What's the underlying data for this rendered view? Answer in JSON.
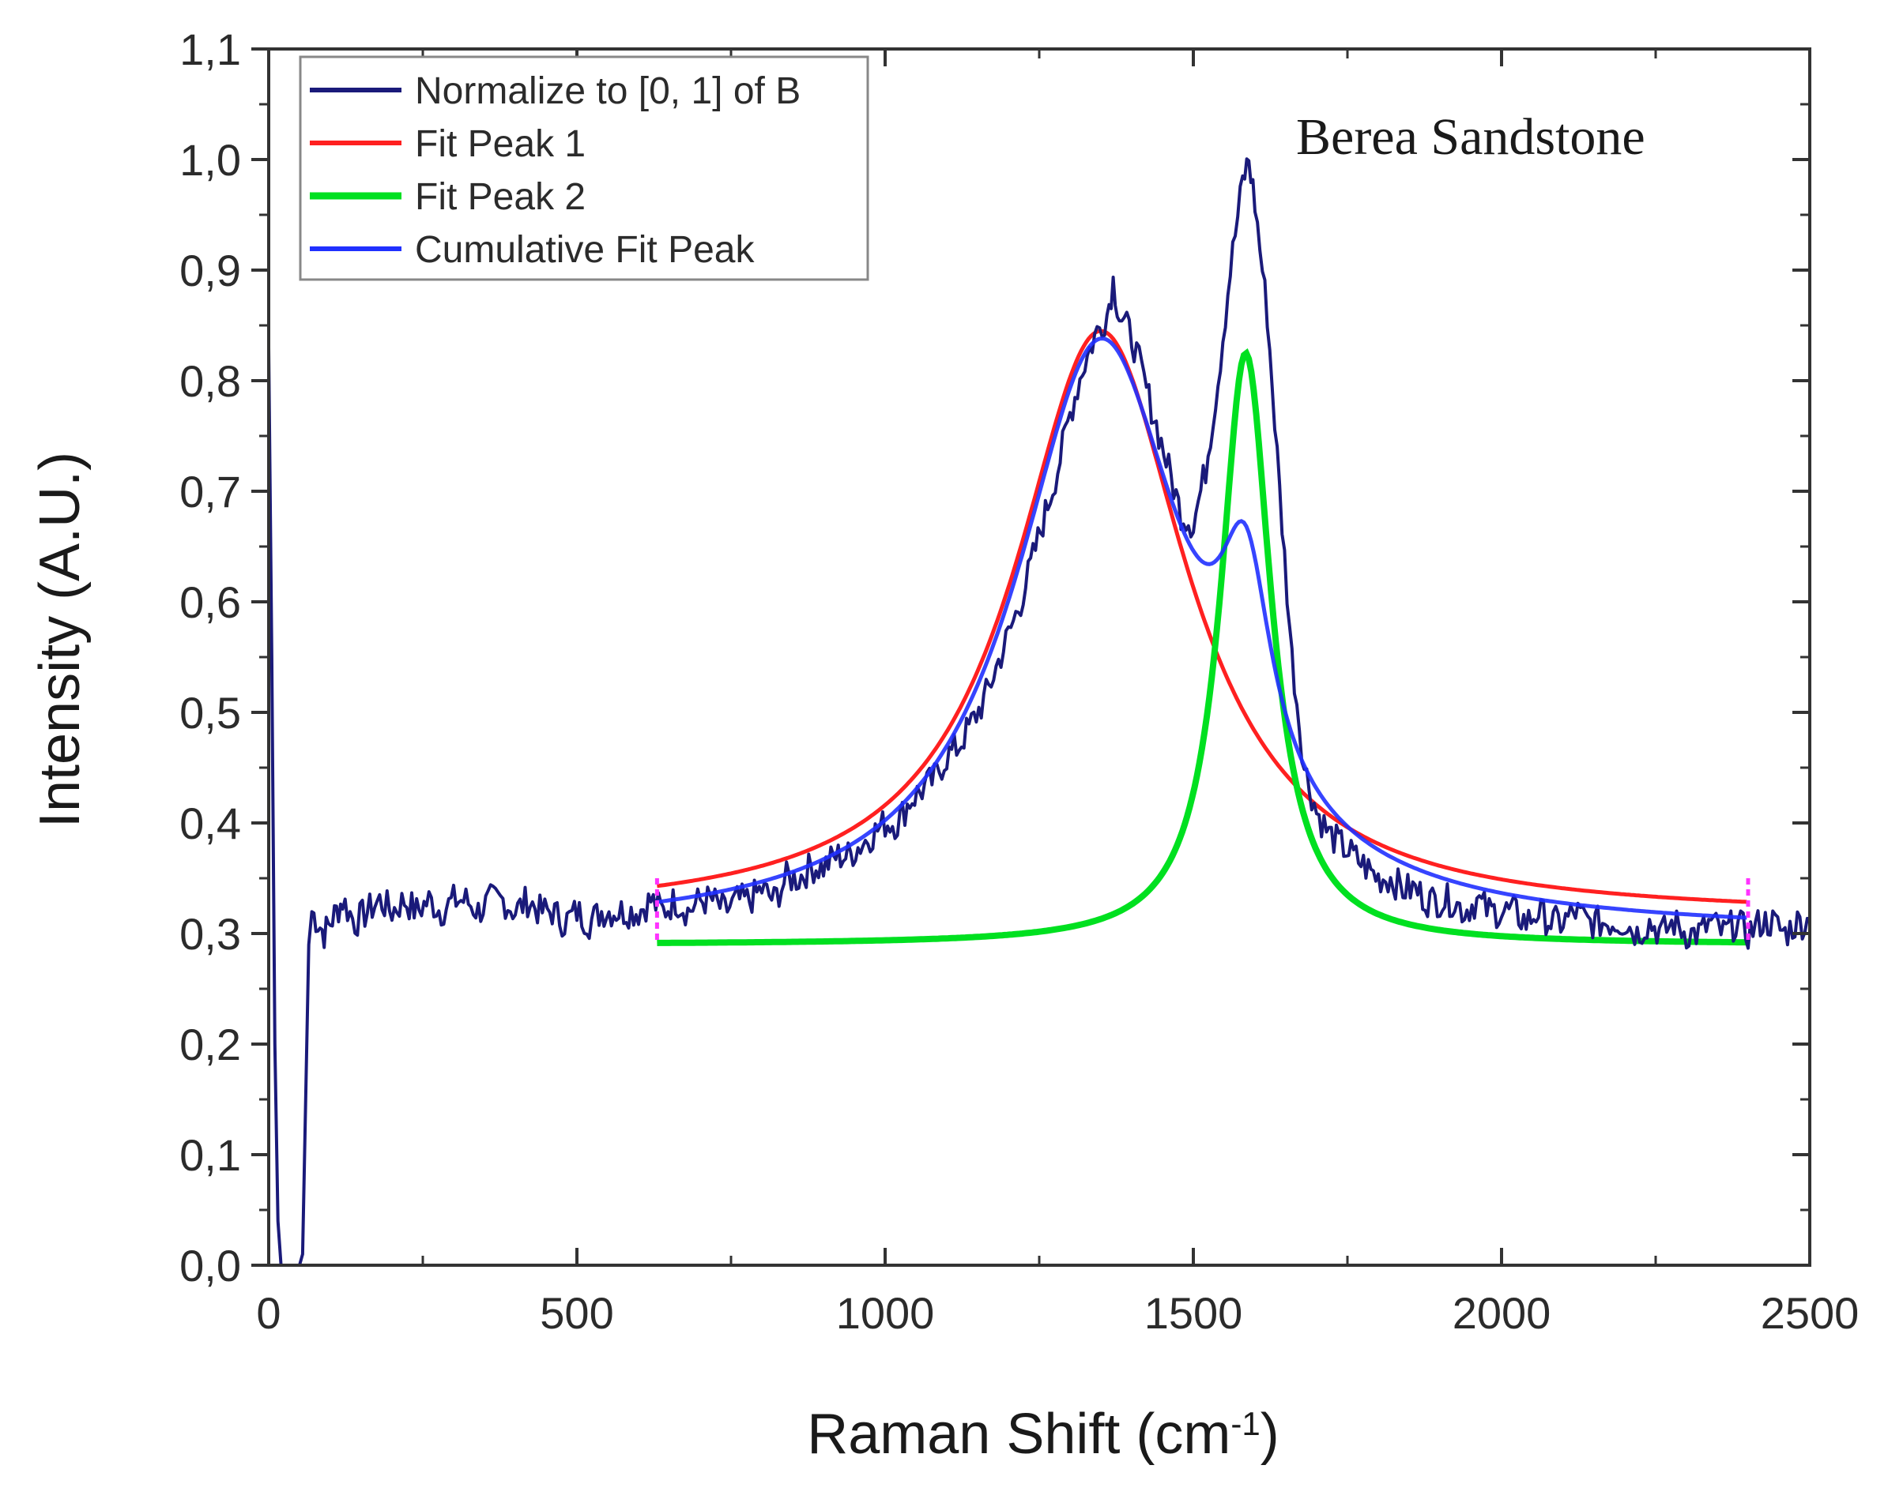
{
  "chart_data": {
    "type": "line",
    "title": "",
    "annotation": "Berea Sandstone",
    "xlabel": "Raman Shift (cm",
    "xlabel_sup": "-1",
    "xlabel_close": ")",
    "ylabel": "Intensity (A.U.)",
    "xlim": [
      0,
      2500
    ],
    "ylim": [
      0.0,
      1.1
    ],
    "x_ticks": [
      0,
      500,
      1000,
      1500,
      2000,
      2500
    ],
    "x_tick_labels": [
      "0",
      "500",
      "1000",
      "1500",
      "2000",
      "2500"
    ],
    "y_ticks": [
      0.0,
      0.1,
      0.2,
      0.3,
      0.4,
      0.5,
      0.6,
      0.7,
      0.8,
      0.9,
      1.0,
      1.1
    ],
    "y_tick_labels": [
      "0,0",
      "0,1",
      "0,2",
      "0,3",
      "0,4",
      "0,5",
      "0,6",
      "0,7",
      "0,8",
      "0,9",
      "1,0",
      "1,1"
    ],
    "grid": false,
    "legend_position": "top-left",
    "series": [
      {
        "name": "Normalize to [0, 1] of B",
        "color": "#1a1a7a",
        "points": [
          [
            0,
            0.83
          ],
          [
            5,
            0.55
          ],
          [
            10,
            0.2
          ],
          [
            15,
            0.04
          ],
          [
            20,
            0.0
          ],
          [
            30,
            0.0
          ],
          [
            40,
            0.0
          ],
          [
            50,
            0.0
          ],
          [
            55,
            0.01
          ],
          [
            60,
            0.15
          ],
          [
            65,
            0.29
          ],
          [
            70,
            0.32
          ],
          [
            80,
            0.31
          ],
          [
            90,
            0.3
          ],
          [
            100,
            0.31
          ],
          [
            110,
            0.32
          ],
          [
            120,
            0.33
          ],
          [
            140,
            0.31
          ],
          [
            160,
            0.32
          ],
          [
            180,
            0.33
          ],
          [
            200,
            0.32
          ],
          [
            220,
            0.33
          ],
          [
            240,
            0.32
          ],
          [
            260,
            0.33
          ],
          [
            280,
            0.32
          ],
          [
            300,
            0.33
          ],
          [
            320,
            0.33
          ],
          [
            340,
            0.32
          ],
          [
            360,
            0.33
          ],
          [
            380,
            0.33
          ],
          [
            400,
            0.32
          ],
          [
            420,
            0.33
          ],
          [
            440,
            0.32
          ],
          [
            460,
            0.32
          ],
          [
            480,
            0.31
          ],
          [
            500,
            0.32
          ],
          [
            520,
            0.31
          ],
          [
            540,
            0.32
          ],
          [
            560,
            0.32
          ],
          [
            580,
            0.32
          ],
          [
            600,
            0.32
          ],
          [
            620,
            0.33
          ],
          [
            640,
            0.32
          ],
          [
            660,
            0.33
          ],
          [
            680,
            0.32
          ],
          [
            700,
            0.33
          ],
          [
            720,
            0.33
          ],
          [
            740,
            0.32
          ],
          [
            760,
            0.33
          ],
          [
            780,
            0.33
          ],
          [
            800,
            0.34
          ],
          [
            820,
            0.33
          ],
          [
            840,
            0.35
          ],
          [
            860,
            0.35
          ],
          [
            880,
            0.36
          ],
          [
            900,
            0.36
          ],
          [
            920,
            0.37
          ],
          [
            940,
            0.37
          ],
          [
            960,
            0.38
          ],
          [
            980,
            0.39
          ],
          [
            1000,
            0.4
          ],
          [
            1020,
            0.4
          ],
          [
            1040,
            0.42
          ],
          [
            1060,
            0.43
          ],
          [
            1080,
            0.44
          ],
          [
            1100,
            0.46
          ],
          [
            1120,
            0.47
          ],
          [
            1140,
            0.49
          ],
          [
            1160,
            0.51
          ],
          [
            1180,
            0.54
          ],
          [
            1200,
            0.57
          ],
          [
            1220,
            0.6
          ],
          [
            1240,
            0.64
          ],
          [
            1260,
            0.68
          ],
          [
            1280,
            0.72
          ],
          [
            1300,
            0.77
          ],
          [
            1320,
            0.81
          ],
          [
            1340,
            0.84
          ],
          [
            1360,
            0.86
          ],
          [
            1370,
            0.89
          ],
          [
            1380,
            0.86
          ],
          [
            1400,
            0.84
          ],
          [
            1420,
            0.8
          ],
          [
            1440,
            0.76
          ],
          [
            1460,
            0.72
          ],
          [
            1480,
            0.68
          ],
          [
            1500,
            0.67
          ],
          [
            1520,
            0.72
          ],
          [
            1540,
            0.8
          ],
          [
            1560,
            0.9
          ],
          [
            1580,
            0.98
          ],
          [
            1590,
            1.0
          ],
          [
            1600,
            0.96
          ],
          [
            1620,
            0.86
          ],
          [
            1640,
            0.7
          ],
          [
            1660,
            0.55
          ],
          [
            1680,
            0.45
          ],
          [
            1700,
            0.41
          ],
          [
            1720,
            0.39
          ],
          [
            1740,
            0.38
          ],
          [
            1760,
            0.37
          ],
          [
            1780,
            0.36
          ],
          [
            1800,
            0.35
          ],
          [
            1820,
            0.35
          ],
          [
            1840,
            0.34
          ],
          [
            1860,
            0.34
          ],
          [
            1880,
            0.33
          ],
          [
            1900,
            0.33
          ],
          [
            1920,
            0.33
          ],
          [
            1940,
            0.32
          ],
          [
            1960,
            0.33
          ],
          [
            1980,
            0.32
          ],
          [
            2000,
            0.32
          ],
          [
            2020,
            0.32
          ],
          [
            2040,
            0.31
          ],
          [
            2060,
            0.32
          ],
          [
            2080,
            0.31
          ],
          [
            2100,
            0.31
          ],
          [
            2120,
            0.32
          ],
          [
            2140,
            0.31
          ],
          [
            2160,
            0.31
          ],
          [
            2180,
            0.31
          ],
          [
            2200,
            0.31
          ],
          [
            2220,
            0.3
          ],
          [
            2240,
            0.31
          ],
          [
            2260,
            0.3
          ],
          [
            2280,
            0.31
          ],
          [
            2300,
            0.3
          ],
          [
            2320,
            0.3
          ],
          [
            2340,
            0.31
          ],
          [
            2360,
            0.3
          ],
          [
            2380,
            0.31
          ],
          [
            2400,
            0.3
          ],
          [
            2420,
            0.31
          ],
          [
            2440,
            0.31
          ],
          [
            2460,
            0.3
          ],
          [
            2480,
            0.31
          ],
          [
            2500,
            0.31
          ]
        ]
      },
      {
        "name": "Fit Peak 1",
        "color": "#ff2020",
        "baseline": 0.29,
        "amplitude": 0.53,
        "center": 1350,
        "hwhm": 170,
        "x_range": [
          630,
          2400
        ]
      },
      {
        "name": "Fit Peak 2",
        "color": "#00e020",
        "baseline": 0.29,
        "amplitude": 0.535,
        "center": 1585,
        "hwhm": 50,
        "x_range": [
          630,
          2400
        ]
      },
      {
        "name": "Cumulative Fit Peak",
        "color": "#2030ff",
        "x_range": [
          630,
          2400
        ]
      }
    ]
  }
}
